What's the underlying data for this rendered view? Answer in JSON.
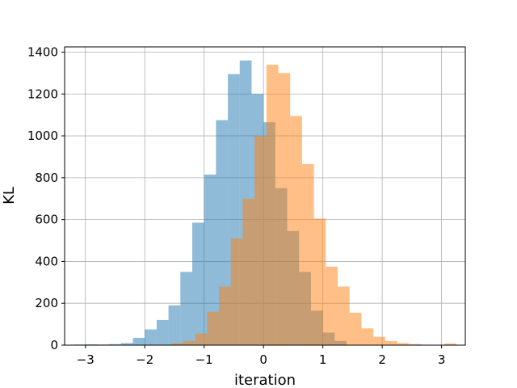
{
  "chart_data": {
    "type": "bar",
    "xlabel": "iteration",
    "ylabel": "KL",
    "xlim": [
      -3.35,
      3.4
    ],
    "ylim": [
      0,
      1425
    ],
    "xticks": [
      -3,
      -2,
      -1,
      0,
      1,
      2,
      3
    ],
    "xtick_labels": [
      "−3",
      "−2",
      "−1",
      "0",
      "1",
      "2",
      "3"
    ],
    "yticks": [
      0,
      200,
      400,
      600,
      800,
      1000,
      1200,
      1400
    ],
    "ytick_labels": [
      "0",
      "200",
      "400",
      "600",
      "800",
      "1000",
      "1200",
      "1400"
    ],
    "grid": true,
    "series": [
      {
        "color": "#1f77b4",
        "opacity": 0.5,
        "bin_edges": [
          -3.2,
          -3.0,
          -2.8,
          -2.6,
          -2.4,
          -2.2,
          -2.0,
          -1.8,
          -1.6,
          -1.4,
          -1.2,
          -1.0,
          -0.8,
          -0.6,
          -0.4,
          -0.2,
          0.0,
          0.2,
          0.4,
          0.6,
          0.8,
          1.0,
          1.2,
          1.4
        ],
        "counts": [
          3,
          4,
          3,
          5,
          10,
          35,
          75,
          120,
          190,
          350,
          585,
          815,
          1075,
          1295,
          1360,
          1200,
          1065,
          750,
          545,
          350,
          165,
          60,
          20
        ]
      },
      {
        "color": "#ff7f0e",
        "opacity": 0.5,
        "bin_edges": [
          -1.55,
          -1.35,
          -1.15,
          -0.95,
          -0.75,
          -0.55,
          -0.35,
          -0.15,
          0.05,
          0.25,
          0.45,
          0.65,
          0.85,
          1.05,
          1.25,
          1.45,
          1.65,
          1.85,
          2.05,
          2.25,
          2.45,
          2.65,
          2.85,
          3.05,
          3.25
        ],
        "counts": [
          10,
          20,
          55,
          160,
          280,
          510,
          700,
          1000,
          1340,
          1300,
          1095,
          865,
          605,
          375,
          280,
          155,
          80,
          40,
          20,
          10,
          5,
          2,
          2,
          8
        ]
      }
    ]
  }
}
